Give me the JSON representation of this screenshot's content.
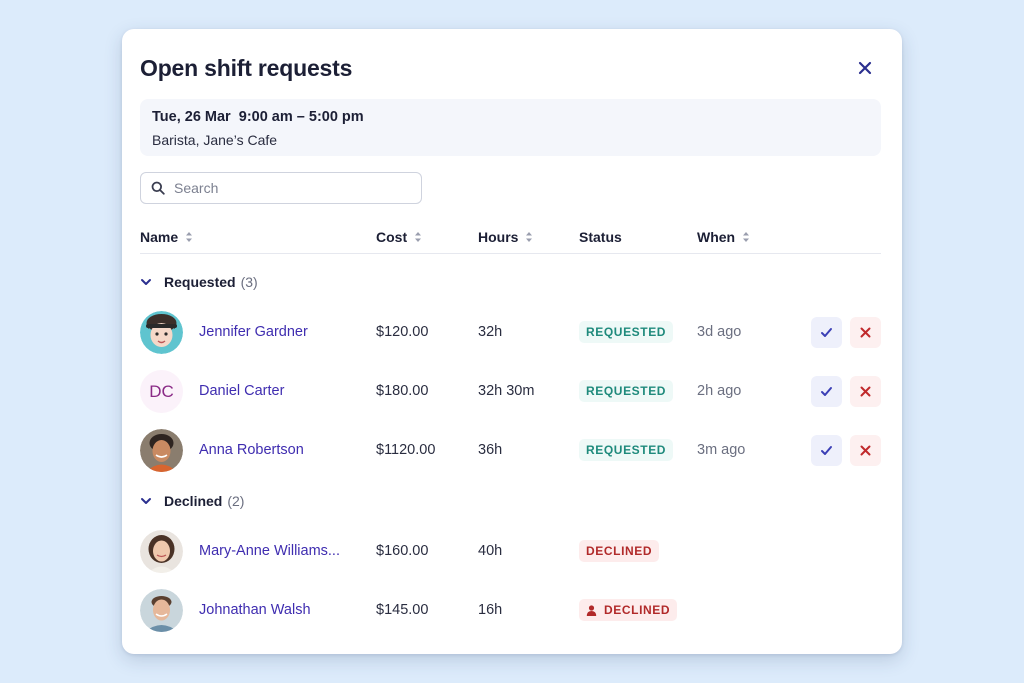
{
  "modal": {
    "title": "Open shift requests",
    "shift": {
      "when": "Tue, 26 Mar  9:00 am – 5:00 pm",
      "where": "Barista, Jane’s Cafe"
    },
    "search": {
      "placeholder": "Search",
      "value": ""
    },
    "columns": {
      "name": "Name",
      "cost": "Cost",
      "hours": "Hours",
      "status": "Status",
      "when": "When"
    },
    "groups": {
      "requested": {
        "label": "Requested",
        "count": "(3)"
      },
      "declined": {
        "label": "Declined",
        "count": "(2)"
      }
    },
    "requested_rows": [
      {
        "name": "Jennifer Gardner",
        "cost": "$120.00",
        "hours": "32h",
        "status": "REQUESTED",
        "when": "3d ago",
        "avatar": "memoji-avatar"
      },
      {
        "name": "Daniel Carter",
        "cost": "$180.00",
        "hours": "32h 30m",
        "status": "REQUESTED",
        "when": "2h ago",
        "avatar": "initials",
        "initials": "DC"
      },
      {
        "name": "Anna Robertson",
        "cost": "$1120.00",
        "hours": "36h",
        "status": "REQUESTED",
        "when": "3m ago",
        "avatar": "photo-avatar"
      }
    ],
    "declined_rows": [
      {
        "name": "Mary-Anne Williams...",
        "cost": "$160.00",
        "hours": "40h",
        "status": "DECLINED",
        "avatar": "photo-avatar"
      },
      {
        "name": "Johnathan Walsh",
        "cost": "$145.00",
        "hours": "16h",
        "status": "DECLINED",
        "status_icon": "person-icon",
        "avatar": "photo-avatar"
      }
    ]
  },
  "colors": {
    "background": "#dcebfb",
    "name_link": "#3f2db0",
    "requested_badge": "#1f8a7c",
    "declined_badge": "#b12a2a",
    "approve": "#3b3fb5",
    "reject": "#c0292b"
  }
}
